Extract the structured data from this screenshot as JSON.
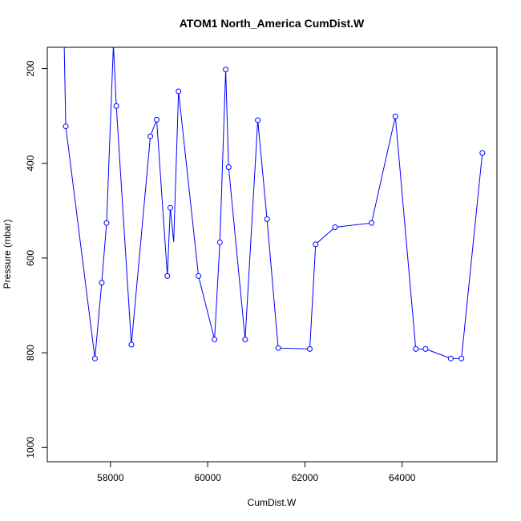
{
  "chart_data": {
    "type": "line",
    "title": "ATOM1 North_America CumDist.W",
    "xlabel": "CumDist.W",
    "ylabel": "Pressure (mbar)",
    "xlim": [
      56700,
      65950
    ],
    "ylim": [
      1030,
      155
    ],
    "y_reversed": true,
    "x_ticks": [
      58000,
      60000,
      62000,
      64000
    ],
    "y_ticks": [
      200,
      400,
      600,
      800,
      1000
    ],
    "grid": false,
    "line_color": "#0000ff",
    "marker": "open-circle",
    "x": [
      57000,
      57080,
      57680,
      57820,
      57920,
      58060,
      58120,
      58430,
      58820,
      58950,
      59170,
      59230,
      59300,
      59400,
      59810,
      60140,
      60250,
      60370,
      60430,
      60770,
      61030,
      61220,
      61450,
      62100,
      62220,
      62620,
      63370,
      63860,
      64280,
      64480,
      65000,
      65220,
      65650
    ],
    "y": [
      -100,
      322,
      812,
      652,
      526,
      150,
      279,
      783,
      343,
      308,
      638,
      494,
      566,
      248,
      638,
      772,
      567,
      202,
      408,
      772,
      309,
      518,
      790,
      792,
      571,
      535,
      526,
      301,
      792,
      792,
      812,
      812,
      378
    ],
    "markers": [
      false,
      true,
      true,
      true,
      true,
      false,
      true,
      true,
      true,
      true,
      true,
      true,
      false,
      true,
      true,
      true,
      true,
      true,
      true,
      true,
      true,
      true,
      true,
      true,
      true,
      true,
      true,
      true,
      true,
      true,
      true,
      true,
      true
    ]
  }
}
